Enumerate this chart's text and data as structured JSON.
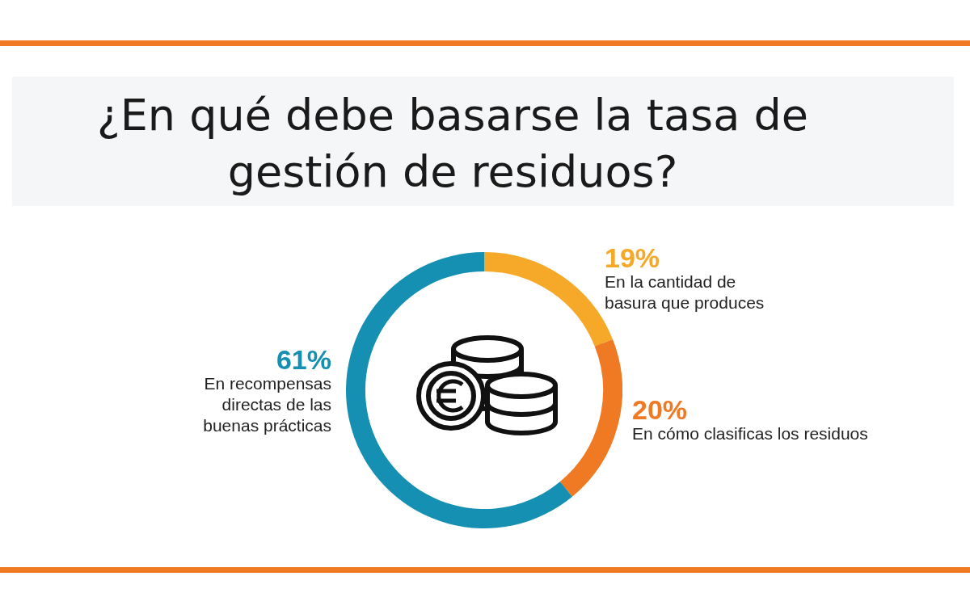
{
  "chart_data": {
    "type": "donut",
    "title": "¿En qué debe basarse la tasa de gestión de residuos?",
    "categories": [
      "En la cantidad de basura que produces",
      "En cómo clasificas los residuos",
      "En recompensas directas de las buenas prácticas"
    ],
    "values": [
      19,
      20,
      61
    ],
    "value_labels": [
      "19%",
      "20%",
      "61%"
    ],
    "colors": [
      "#f6a929",
      "#f07a24",
      "#1690b2"
    ],
    "legend": false
  }
}
